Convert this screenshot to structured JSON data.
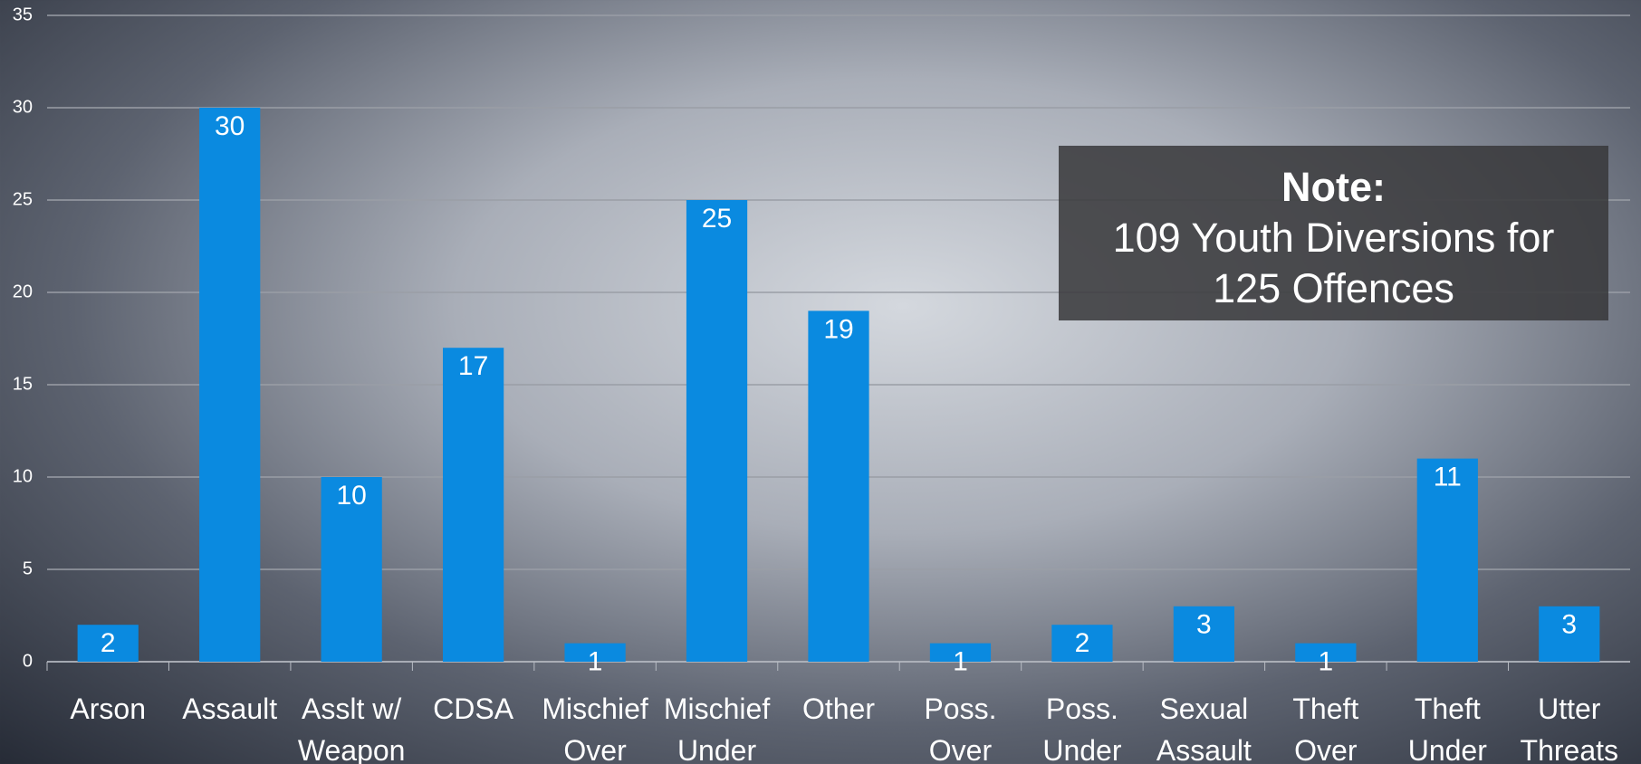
{
  "chart_data": {
    "type": "bar",
    "categories": [
      "Arson",
      "Assault",
      "Asslt w/ Weapon",
      "CDSA",
      "Mischief Over",
      "Mischief Under",
      "Other",
      "Poss. Over",
      "Poss. Under",
      "Sexual Assault",
      "Theft Over",
      "Theft Under",
      "Utter Threats"
    ],
    "values": [
      2,
      30,
      10,
      17,
      1,
      25,
      19,
      1,
      2,
      3,
      1,
      11,
      3
    ],
    "color": "#0a8ae0",
    "ylim": [
      0,
      35
    ],
    "yticks": [
      0,
      5,
      10,
      15,
      20,
      25,
      30,
      35
    ],
    "grid": true,
    "annotation": {
      "title": "Note:",
      "text": "109 Youth Diversions for 125 Offences"
    }
  }
}
